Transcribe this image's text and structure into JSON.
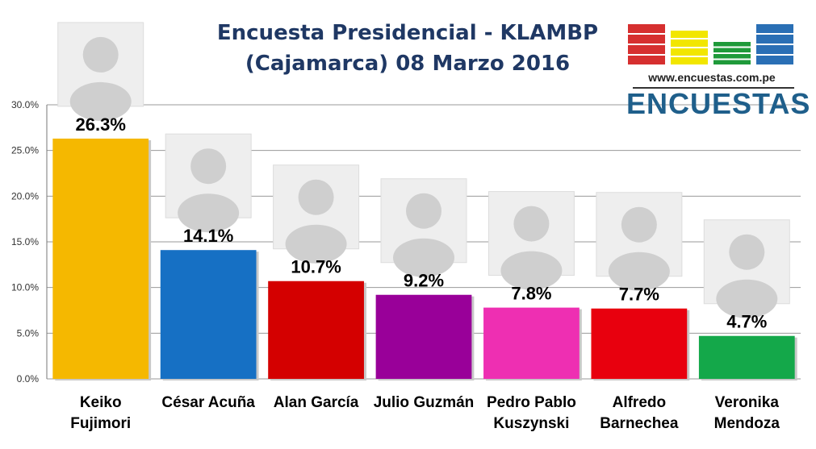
{
  "title_line1": "Encuesta Presidencial - KLAMBP",
  "title_line2": "(Cajamarca) 08 Marzo 2016",
  "logo": {
    "url": "www.encuestas.com.pe",
    "word": "ENCUESTAS",
    "colors": [
      "#d62f2f",
      "#f2e600",
      "#1f9a3a",
      "#2a6fb5"
    ]
  },
  "chart_data": {
    "type": "bar",
    "title": "Encuesta Presidencial - KLAMBP (Cajamarca) 08 Marzo 2016",
    "categories": [
      [
        "Keiko",
        "Fujimori"
      ],
      [
        "César Acuña"
      ],
      [
        "Alan García"
      ],
      [
        "Julio Guzmán"
      ],
      [
        "Pedro Pablo",
        "Kuszynski"
      ],
      [
        "Alfredo",
        "Barnechea"
      ],
      [
        "Veronika",
        "Mendoza"
      ]
    ],
    "values": [
      26.3,
      14.1,
      10.7,
      9.2,
      7.8,
      7.7,
      4.7
    ],
    "data_labels": [
      "26.3%",
      "14.1%",
      "10.7%",
      "9.2%",
      "7.8%",
      "7.7%",
      "4.7%"
    ],
    "colors": [
      "#f5b800",
      "#1670c4",
      "#d40000",
      "#990099",
      "#ee2fb2",
      "#e8000e",
      "#14a84a"
    ],
    "ylim": [
      0,
      30
    ],
    "yticks": [
      0,
      5,
      10,
      15,
      20,
      25,
      30
    ],
    "ytick_labels": [
      "0.0%",
      "5.0%",
      "10.0%",
      "15.0%",
      "20.0%",
      "25.0%",
      "30.0%"
    ],
    "xlabel": "",
    "ylabel": "",
    "grid": true
  }
}
